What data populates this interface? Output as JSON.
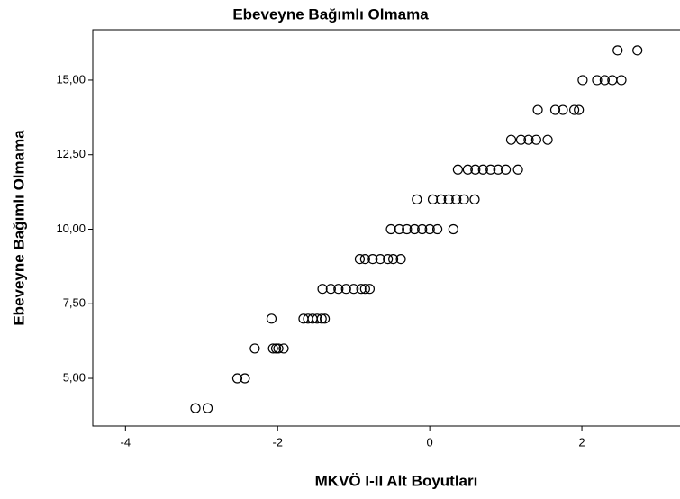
{
  "chart_data": {
    "type": "scatter",
    "title": "Ebeveyne Bağımlı Olmama",
    "xlabel": "MKVÖ I-II Alt Boyutları",
    "ylabel": "Ebeveyne Bağımlı Olmama",
    "x": [
      -3.08,
      -2.92,
      -2.53,
      -2.43,
      -2.3,
      -2.06,
      -2.02,
      -1.99,
      -1.92,
      -2.08,
      -1.66,
      -1.6,
      -1.54,
      -1.48,
      -1.42,
      -1.38,
      -1.41,
      -1.3,
      -1.2,
      -1.1,
      -1.0,
      -0.9,
      -0.85,
      -0.79,
      -0.92,
      -0.85,
      -0.75,
      -0.65,
      -0.55,
      -0.48,
      -0.38,
      -0.51,
      -0.4,
      -0.3,
      -0.2,
      -0.1,
      0,
      0.1,
      0.31,
      -0.17,
      0.04,
      0.15,
      0.25,
      0.35,
      0.45,
      0.59,
      0.37,
      0.5,
      0.6,
      0.7,
      0.8,
      0.9,
      1.0,
      1.16,
      1.07,
      1.2,
      1.3,
      1.4,
      1.55,
      1.42,
      1.65,
      1.75,
      1.9,
      1.96,
      2.01,
      2.2,
      2.3,
      2.4,
      2.52,
      2.47,
      2.73
    ],
    "y": [
      4,
      4,
      5,
      5,
      6,
      6,
      6,
      6,
      6,
      7,
      7,
      7,
      7,
      7,
      7,
      7,
      8,
      8,
      8,
      8,
      8,
      8,
      8,
      8,
      9,
      9,
      9,
      9,
      9,
      9,
      9,
      10,
      10,
      10,
      10,
      10,
      10,
      10,
      10,
      11,
      11,
      11,
      11,
      11,
      11,
      11,
      12,
      12,
      12,
      12,
      12,
      12,
      12,
      12,
      13,
      13,
      13,
      13,
      13,
      14,
      14,
      14,
      14,
      14,
      15,
      15,
      15,
      15,
      15,
      16,
      16
    ],
    "color": "#000000",
    "xlim": [
      -4.43,
      3.29
    ],
    "ylim": [
      3.4,
      16.69
    ],
    "xticks": [
      -4,
      -2,
      0,
      2
    ],
    "yticks": [
      {
        "value": 5,
        "label": "5,00"
      },
      {
        "value": 7.5,
        "label": "7,50"
      },
      {
        "value": 10,
        "label": "10,00"
      },
      {
        "value": 12.5,
        "label": "12,50"
      },
      {
        "value": 15,
        "label": "15,00"
      }
    ],
    "grid": false
  }
}
